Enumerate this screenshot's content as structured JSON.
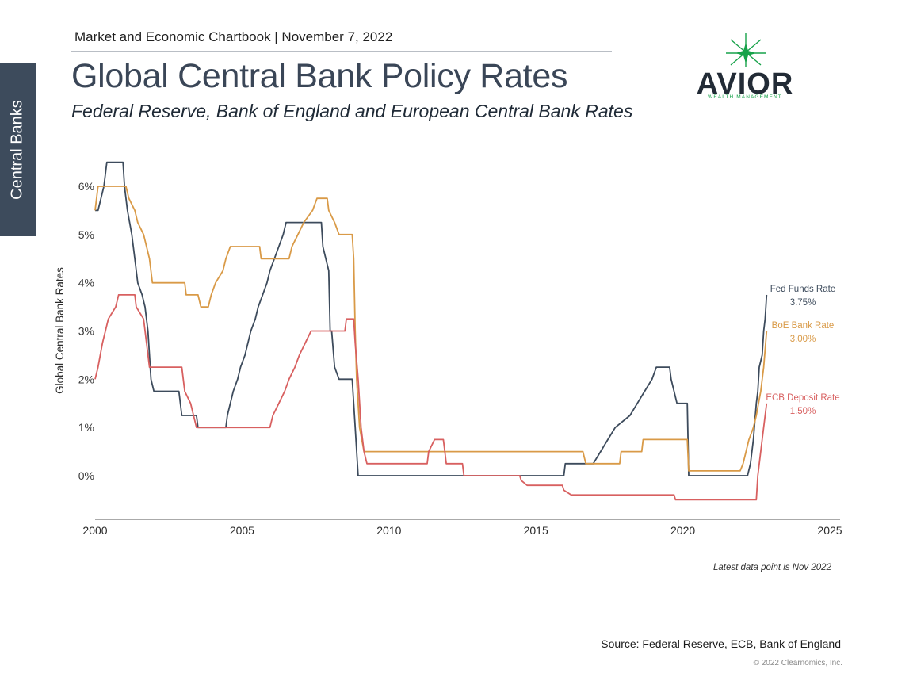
{
  "side_tab": {
    "label": "Central Banks"
  },
  "header": {
    "chartbook": "Market and Economic Chartbook | November 7, 2022",
    "title": "Global Central Bank Policy Rates",
    "subtitle": "Federal Reserve, Bank of England and European Central Bank Rates"
  },
  "logo": {
    "name": "AVIOR",
    "tagline": "WEALTH MANAGEMENT",
    "accent": "#17a24a"
  },
  "footer": {
    "note": "Latest data point is Nov 2022",
    "source": "Source: Federal Reserve, ECB, Bank of England",
    "copyright": "© 2022 Clearnomics, Inc."
  },
  "chart_data": {
    "type": "line",
    "title": "Global Central Bank Policy Rates",
    "xlabel": "",
    "ylabel": "Global Central Bank Rates",
    "xlim": [
      2000,
      2025
    ],
    "ylim": [
      -0.9,
      6.5
    ],
    "x_ticks": [
      2000,
      2005,
      2010,
      2015,
      2020,
      2025
    ],
    "x_tick_labels": [
      "2000",
      "2005",
      "2010",
      "2015",
      "2020",
      "2025"
    ],
    "y_ticks": [
      0,
      1,
      2,
      3,
      4,
      5,
      6
    ],
    "y_tick_labels": [
      "0%",
      "1%",
      "2%",
      "3%",
      "4%",
      "5%",
      "6%"
    ],
    "grid": false,
    "legend": "end-of-line labels",
    "series": [
      {
        "name": "Fed Funds Rate",
        "end_label": "3.75%",
        "color": "#3d4b5c",
        "points": [
          [
            2000.0,
            5.5
          ],
          [
            2000.1,
            5.5
          ],
          [
            2000.2,
            5.75
          ],
          [
            2000.3,
            6.0
          ],
          [
            2000.4,
            6.5
          ],
          [
            2000.95,
            6.5
          ],
          [
            2001.0,
            6.0
          ],
          [
            2001.1,
            5.5
          ],
          [
            2001.25,
            5.0
          ],
          [
            2001.35,
            4.5
          ],
          [
            2001.45,
            4.0
          ],
          [
            2001.6,
            3.75
          ],
          [
            2001.7,
            3.5
          ],
          [
            2001.8,
            3.0
          ],
          [
            2001.85,
            2.5
          ],
          [
            2001.9,
            2.0
          ],
          [
            2002.0,
            1.75
          ],
          [
            2002.85,
            1.75
          ],
          [
            2002.95,
            1.25
          ],
          [
            2003.45,
            1.25
          ],
          [
            2003.5,
            1.0
          ],
          [
            2004.45,
            1.0
          ],
          [
            2004.5,
            1.25
          ],
          [
            2004.6,
            1.5
          ],
          [
            2004.7,
            1.75
          ],
          [
            2004.85,
            2.0
          ],
          [
            2004.95,
            2.25
          ],
          [
            2005.1,
            2.5
          ],
          [
            2005.2,
            2.75
          ],
          [
            2005.3,
            3.0
          ],
          [
            2005.45,
            3.25
          ],
          [
            2005.55,
            3.5
          ],
          [
            2005.7,
            3.75
          ],
          [
            2005.85,
            4.0
          ],
          [
            2005.95,
            4.25
          ],
          [
            2006.1,
            4.5
          ],
          [
            2006.25,
            4.75
          ],
          [
            2006.4,
            5.0
          ],
          [
            2006.5,
            5.25
          ],
          [
            2007.7,
            5.25
          ],
          [
            2007.75,
            4.75
          ],
          [
            2007.85,
            4.5
          ],
          [
            2007.95,
            4.25
          ],
          [
            2008.0,
            3.0
          ],
          [
            2008.05,
            3.0
          ],
          [
            2008.15,
            2.25
          ],
          [
            2008.3,
            2.0
          ],
          [
            2008.75,
            2.0
          ],
          [
            2008.8,
            1.5
          ],
          [
            2008.85,
            1.0
          ],
          [
            2008.95,
            0.0
          ],
          [
            2015.95,
            0.0
          ],
          [
            2016.0,
            0.25
          ],
          [
            2016.95,
            0.25
          ],
          [
            2017.2,
            0.5
          ],
          [
            2017.45,
            0.75
          ],
          [
            2017.7,
            1.0
          ],
          [
            2018.2,
            1.25
          ],
          [
            2018.45,
            1.5
          ],
          [
            2018.7,
            1.75
          ],
          [
            2018.95,
            2.0
          ],
          [
            2019.1,
            2.25
          ],
          [
            2019.55,
            2.25
          ],
          [
            2019.6,
            2.0
          ],
          [
            2019.7,
            1.75
          ],
          [
            2019.8,
            1.5
          ],
          [
            2020.15,
            1.5
          ],
          [
            2020.2,
            0.0
          ],
          [
            2022.2,
            0.0
          ],
          [
            2022.3,
            0.25
          ],
          [
            2022.4,
            0.75
          ],
          [
            2022.5,
            1.5
          ],
          [
            2022.55,
            1.75
          ],
          [
            2022.6,
            2.25
          ],
          [
            2022.7,
            2.5
          ],
          [
            2022.75,
            3.0
          ],
          [
            2022.8,
            3.25
          ],
          [
            2022.85,
            3.75
          ]
        ]
      },
      {
        "name": "BoE Bank Rate",
        "end_label": "3.00%",
        "color": "#d99a47",
        "points": [
          [
            2000.0,
            5.5
          ],
          [
            2000.1,
            6.0
          ],
          [
            2001.05,
            6.0
          ],
          [
            2001.15,
            5.75
          ],
          [
            2001.35,
            5.5
          ],
          [
            2001.45,
            5.25
          ],
          [
            2001.65,
            5.0
          ],
          [
            2001.75,
            4.75
          ],
          [
            2001.85,
            4.5
          ],
          [
            2001.95,
            4.0
          ],
          [
            2003.05,
            4.0
          ],
          [
            2003.1,
            3.75
          ],
          [
            2003.5,
            3.75
          ],
          [
            2003.6,
            3.5
          ],
          [
            2003.85,
            3.5
          ],
          [
            2003.95,
            3.75
          ],
          [
            2004.1,
            4.0
          ],
          [
            2004.35,
            4.25
          ],
          [
            2004.45,
            4.5
          ],
          [
            2004.6,
            4.75
          ],
          [
            2005.6,
            4.75
          ],
          [
            2005.65,
            4.5
          ],
          [
            2006.6,
            4.5
          ],
          [
            2006.7,
            4.75
          ],
          [
            2006.9,
            5.0
          ],
          [
            2007.1,
            5.25
          ],
          [
            2007.4,
            5.5
          ],
          [
            2007.55,
            5.75
          ],
          [
            2007.9,
            5.75
          ],
          [
            2007.95,
            5.5
          ],
          [
            2008.15,
            5.25
          ],
          [
            2008.3,
            5.0
          ],
          [
            2008.75,
            5.0
          ],
          [
            2008.8,
            4.5
          ],
          [
            2008.85,
            3.0
          ],
          [
            2008.9,
            2.0
          ],
          [
            2009.0,
            1.0
          ],
          [
            2009.15,
            0.5
          ],
          [
            2016.6,
            0.5
          ],
          [
            2016.7,
            0.25
          ],
          [
            2017.85,
            0.25
          ],
          [
            2017.9,
            0.5
          ],
          [
            2018.6,
            0.5
          ],
          [
            2018.65,
            0.75
          ],
          [
            2020.15,
            0.75
          ],
          [
            2020.2,
            0.1
          ],
          [
            2021.95,
            0.1
          ],
          [
            2022.05,
            0.25
          ],
          [
            2022.15,
            0.5
          ],
          [
            2022.25,
            0.75
          ],
          [
            2022.4,
            1.0
          ],
          [
            2022.5,
            1.25
          ],
          [
            2022.65,
            1.75
          ],
          [
            2022.75,
            2.25
          ],
          [
            2022.85,
            3.0
          ]
        ]
      },
      {
        "name": "ECB Deposit Rate",
        "end_label": "1.50%",
        "color": "#d86060",
        "points": [
          [
            2000.0,
            2.0
          ],
          [
            2000.1,
            2.25
          ],
          [
            2000.25,
            2.75
          ],
          [
            2000.45,
            3.25
          ],
          [
            2000.7,
            3.5
          ],
          [
            2000.8,
            3.75
          ],
          [
            2001.35,
            3.75
          ],
          [
            2001.4,
            3.5
          ],
          [
            2001.65,
            3.25
          ],
          [
            2001.75,
            2.75
          ],
          [
            2001.85,
            2.25
          ],
          [
            2002.95,
            2.25
          ],
          [
            2003.05,
            1.75
          ],
          [
            2003.25,
            1.5
          ],
          [
            2003.45,
            1.0
          ],
          [
            2005.95,
            1.0
          ],
          [
            2006.05,
            1.25
          ],
          [
            2006.25,
            1.5
          ],
          [
            2006.45,
            1.75
          ],
          [
            2006.6,
            2.0
          ],
          [
            2006.8,
            2.25
          ],
          [
            2006.95,
            2.5
          ],
          [
            2007.15,
            2.75
          ],
          [
            2007.35,
            3.0
          ],
          [
            2008.5,
            3.0
          ],
          [
            2008.55,
            3.25
          ],
          [
            2008.8,
            3.25
          ],
          [
            2008.85,
            2.75
          ],
          [
            2008.95,
            2.0
          ],
          [
            2009.05,
            1.0
          ],
          [
            2009.15,
            0.5
          ],
          [
            2009.25,
            0.25
          ],
          [
            2011.3,
            0.25
          ],
          [
            2011.35,
            0.5
          ],
          [
            2011.55,
            0.75
          ],
          [
            2011.85,
            0.75
          ],
          [
            2011.9,
            0.5
          ],
          [
            2011.95,
            0.25
          ],
          [
            2012.5,
            0.25
          ],
          [
            2012.55,
            0.0
          ],
          [
            2014.45,
            0.0
          ],
          [
            2014.5,
            -0.1
          ],
          [
            2014.7,
            -0.2
          ],
          [
            2015.9,
            -0.2
          ],
          [
            2015.95,
            -0.3
          ],
          [
            2016.2,
            -0.4
          ],
          [
            2019.7,
            -0.4
          ],
          [
            2019.75,
            -0.5
          ],
          [
            2022.5,
            -0.5
          ],
          [
            2022.55,
            0.0
          ],
          [
            2022.7,
            0.75
          ],
          [
            2022.85,
            1.5
          ]
        ]
      }
    ]
  }
}
